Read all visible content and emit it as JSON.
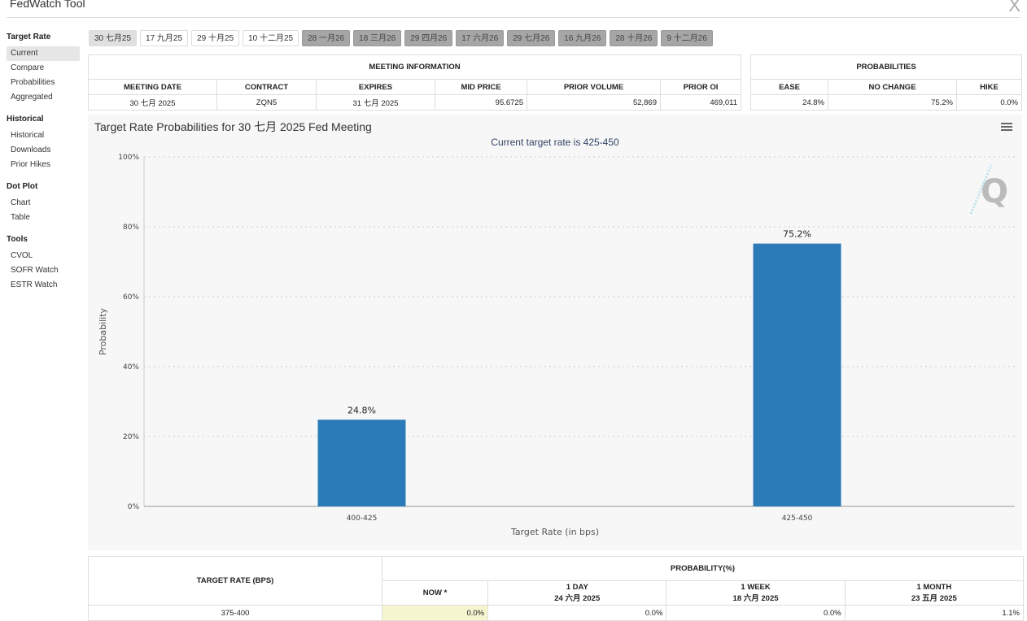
{
  "app": {
    "title": "FedWatch Tool",
    "close": "X"
  },
  "sidebar": [
    {
      "heading": "Target Rate",
      "items": [
        "Current",
        "Compare",
        "Probabilities",
        "Aggregated"
      ]
    },
    {
      "heading": "Historical",
      "items": [
        "Historical",
        "Downloads",
        "Prior Hikes"
      ]
    },
    {
      "heading": "Dot Plot",
      "items": [
        "Chart",
        "Table"
      ]
    },
    {
      "heading": "Tools",
      "items": [
        "CVOL",
        "SOFR Watch",
        "ESTR Watch"
      ]
    }
  ],
  "tabs": [
    "30 七月25",
    "17 九月25",
    "29 十月25",
    "10 十二月25",
    "28 一月26",
    "18 三月26",
    "29 四月26",
    "17 六月26",
    "29 七月26",
    "16 九月26",
    "28 十月26",
    "9 十二月26"
  ],
  "meeting_info": {
    "title": "MEETING INFORMATION",
    "headers": [
      "MEETING DATE",
      "CONTRACT",
      "EXPIRES",
      "MID PRICE",
      "PRIOR VOLUME",
      "PRIOR OI"
    ],
    "row": [
      "30 七月 2025",
      "ZQN5",
      "31 七月 2025",
      "95.6725",
      "52,869",
      "469,011"
    ]
  },
  "probabilities": {
    "title": "PROBABILITIES",
    "headers": [
      "EASE",
      "NO CHANGE",
      "HIKE"
    ],
    "row": [
      "24.8%",
      "75.2%",
      "0.0%"
    ]
  },
  "chart_data": {
    "type": "bar",
    "title": "Target Rate Probabilities for 30 七月 2025 Fed Meeting",
    "subtitle": "Current target rate is 425-450",
    "xlabel": "Target Rate (in bps)",
    "ylabel": "Probability",
    "categories": [
      "400-425",
      "425-450"
    ],
    "values": [
      24.8,
      75.2
    ],
    "labels": [
      "24.8%",
      "75.2%"
    ],
    "ylim": [
      0,
      100
    ],
    "yticks": [
      "0%",
      "20%",
      "40%",
      "60%",
      "80%",
      "100%"
    ],
    "grid": true,
    "color": "#2b7bb9"
  },
  "history": {
    "col1": "TARGET RATE (BPS)",
    "group": "PROBABILITY(%)",
    "cols": [
      {
        "l1": "NOW *",
        "l2": ""
      },
      {
        "l1": "1 DAY",
        "l2": "24 六月 2025"
      },
      {
        "l1": "1 WEEK",
        "l2": "18 六月 2025"
      },
      {
        "l1": "1 MONTH",
        "l2": "23 五月 2025"
      }
    ],
    "row": [
      "375-400",
      "0.0%",
      "0.0%",
      "0.0%",
      "1.1%"
    ]
  }
}
